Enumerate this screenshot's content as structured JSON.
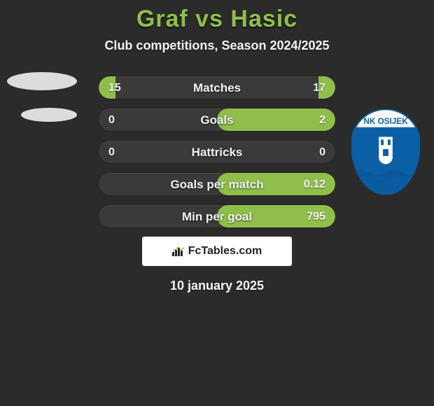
{
  "title": "Graf vs Hasic",
  "subtitle": "Club competitions, Season 2024/2025",
  "date": "10 january 2025",
  "badge": {
    "text": "FcTables.com"
  },
  "colors": {
    "background": "#2b2b2b",
    "accent": "#8fbf4a",
    "bar_track": "#3a3a3a",
    "text": "#f5f5f5",
    "badge_bg": "#ffffff",
    "club_blue": "#0b5fa5",
    "club_white": "#ffffff",
    "club_black": "#000000",
    "avatar_gray": "#dcdcdc"
  },
  "club": {
    "name": "NK OSIJEK"
  },
  "stats": [
    {
      "label": "Matches",
      "left_val": "15",
      "right_val": "17",
      "left_pct": 14,
      "right_pct": 14
    },
    {
      "label": "Goals",
      "left_val": "0",
      "right_val": "2",
      "left_pct": 0,
      "right_pct": 100
    },
    {
      "label": "Hattricks",
      "left_val": "0",
      "right_val": "0",
      "left_pct": 0,
      "right_pct": 0
    },
    {
      "label": "Goals per match",
      "left_val": "",
      "right_val": "0.12",
      "left_pct": 0,
      "right_pct": 100
    },
    {
      "label": "Min per goal",
      "left_val": "",
      "right_val": "795",
      "left_pct": 0,
      "right_pct": 100
    }
  ]
}
